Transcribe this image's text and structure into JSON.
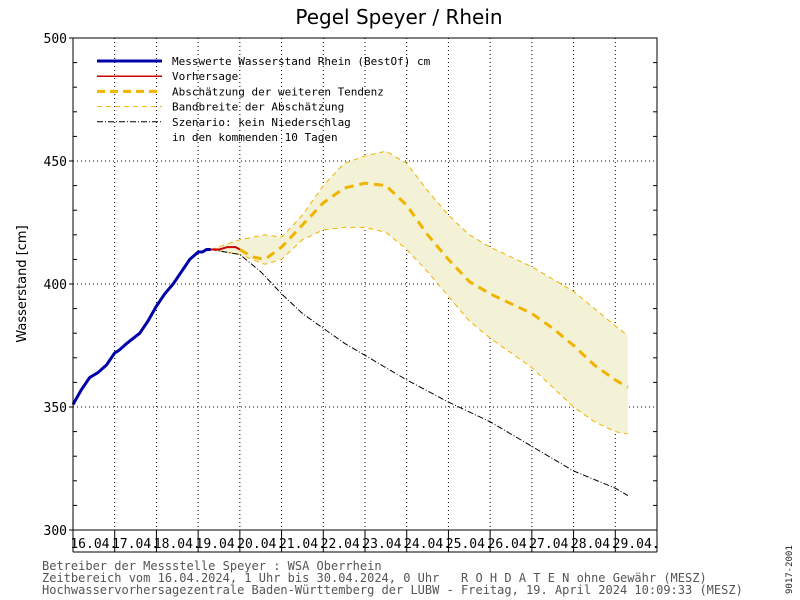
{
  "chart_data": {
    "type": "line",
    "title": "Pegel Speyer / Rhein",
    "ylabel": "Wasserstand [cm]",
    "ylim": [
      300,
      500
    ],
    "yticks": [
      300,
      350,
      400,
      450,
      500
    ],
    "xlim_days": [
      0,
      14
    ],
    "x_labels": [
      "16.04.",
      "17.04.",
      "18.04.",
      "19.04.",
      "20.04.",
      "21.04.",
      "22.04.",
      "23.04.",
      "24.04.",
      "25.04.",
      "26.04.",
      "27.04.",
      "28.04.",
      "29.04."
    ],
    "grid": true,
    "legend_position": "top-left",
    "legend": [
      {
        "label": "Messwerte Wasserstand Rhein (BestOf)   cm",
        "color": "#0000aa",
        "style": "solid-thick"
      },
      {
        "label": "Vorhersage",
        "color": "#cc0000",
        "style": "solid"
      },
      {
        "label": "Abschätzung der weiteren Tendenz",
        "color": "#f0b400",
        "style": "dashed-thick"
      },
      {
        "label": "Bandbreite der Abschätzung",
        "color": "#f0b400",
        "style": "dashed-thin"
      },
      {
        "label": "Szenario: kein Niederschlag",
        "color": "#000000",
        "style": "dashdot"
      },
      {
        "label": "in den kommenden 10 Tagen",
        "color": "",
        "style": "none"
      }
    ],
    "series": [
      {
        "name": "Messwerte Wasserstand Rhein (BestOf)",
        "color": "#0000aa",
        "x": [
          0.0,
          0.2,
          0.4,
          0.6,
          0.8,
          1.0,
          1.1,
          1.3,
          1.6,
          1.8,
          2.0,
          2.2,
          2.4,
          2.6,
          2.8,
          3.0,
          3.1,
          3.2,
          3.3
        ],
        "y": [
          351,
          357,
          362,
          364,
          367,
          372,
          373,
          376,
          380,
          385,
          391,
          396,
          400,
          405,
          410,
          413,
          413,
          414,
          414
        ]
      },
      {
        "name": "Vorhersage",
        "color": "#cc0000",
        "x": [
          3.3,
          3.5,
          3.7,
          3.9,
          4.0
        ],
        "y": [
          414,
          414,
          415,
          415,
          414
        ]
      },
      {
        "name": "Abschätzung der weiteren Tendenz",
        "color": "#f0b400",
        "x": [
          4.0,
          4.3,
          4.6,
          5.0,
          5.5,
          6.0,
          6.5,
          7.0,
          7.5,
          8.0,
          8.5,
          9.0,
          9.5,
          10.0,
          10.5,
          11.0,
          11.5,
          12.0,
          12.5,
          13.0,
          13.3
        ],
        "y": [
          414,
          411,
          410,
          415,
          424,
          433,
          439,
          441,
          440,
          432,
          420,
          410,
          401,
          396,
          392,
          388,
          382,
          375,
          367,
          361,
          358
        ]
      },
      {
        "name": "Bandbreite oben",
        "color": "#f0b400",
        "x": [
          3.3,
          4.0,
          4.6,
          5.0,
          5.5,
          6.0,
          6.5,
          7.0,
          7.5,
          8.0,
          8.5,
          9.0,
          9.5,
          10.0,
          10.5,
          11.0,
          11.5,
          12.0,
          12.5,
          13.0,
          13.3
        ],
        "y": [
          414,
          418,
          420,
          419,
          428,
          440,
          449,
          452,
          454,
          449,
          438,
          428,
          420,
          415,
          411,
          407,
          402,
          397,
          390,
          383,
          379
        ]
      },
      {
        "name": "Bandbreite unten",
        "color": "#f0b400",
        "x": [
          3.3,
          4.0,
          4.6,
          5.0,
          5.5,
          6.0,
          6.5,
          7.0,
          7.5,
          8.0,
          8.5,
          9.0,
          9.5,
          10.0,
          10.5,
          11.0,
          11.5,
          12.0,
          12.5,
          13.0,
          13.3
        ],
        "y": [
          414,
          412,
          408,
          410,
          418,
          422,
          423,
          423,
          421,
          414,
          405,
          395,
          385,
          378,
          372,
          366,
          358,
          350,
          344,
          340,
          339
        ]
      },
      {
        "name": "Szenario: kein Niederschlag",
        "color": "#000000",
        "x": [
          3.3,
          4.0,
          4.5,
          5.0,
          5.5,
          6.0,
          6.5,
          7.0,
          7.5,
          8.0,
          9.0,
          10.0,
          11.0,
          12.0,
          13.0,
          13.3
        ],
        "y": [
          414,
          412,
          405,
          396,
          388,
          382,
          376,
          371,
          366,
          361,
          352,
          344,
          334,
          324,
          317,
          314
        ]
      }
    ]
  },
  "footer": {
    "line1": "Betreiber der Messstelle Speyer : WSA Oberrhein",
    "line2": "Zeitbereich vom 16.04.2024, 1 Uhr bis 30.04.2024, 0 Uhr   R O H D A T E N ohne Gewähr (MESZ)",
    "line3": "Hochwasservorhersagezentrale Baden-Württemberg der LUBW - Freitag, 19. April 2024 10:09:33 (MESZ)"
  },
  "side_label": "9017-2001"
}
